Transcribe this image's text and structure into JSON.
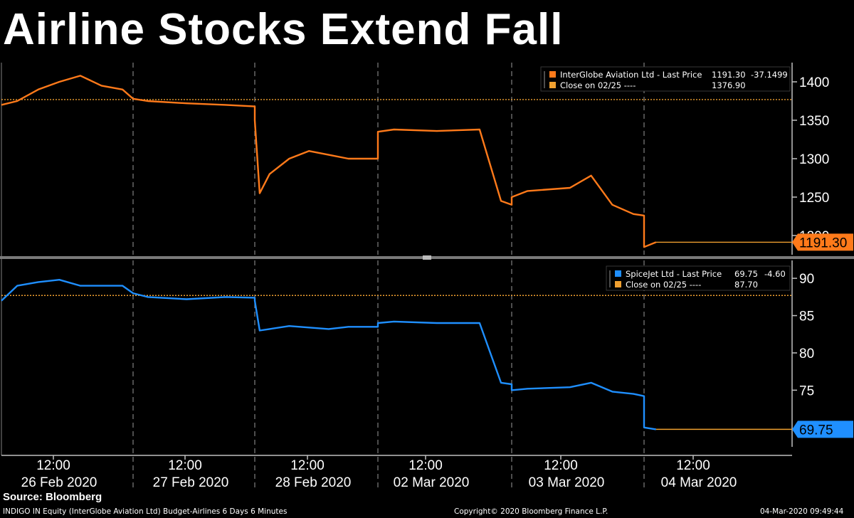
{
  "title": "Airline Stocks Extend Fall",
  "source": "Source: Bloomberg",
  "footer": {
    "left": "INDIGO IN Equity (InterGlobe Aviation Ltd) Budget-Airlines 6 Days 6 Minutes",
    "center": "Copyright© 2020 Bloomberg Finance L.P.",
    "right": "04-Mar-2020 09:49:44"
  },
  "colors": {
    "orange": "#ff7a1a",
    "blue": "#1f8fff",
    "ref": "#f0a030",
    "grid": "#808080",
    "axis": "#c0c0c0"
  },
  "chart_data": [
    {
      "type": "line",
      "series": [
        {
          "name": "InterGlobe Aviation Ltd - Last Price",
          "color": "#ff7a1a",
          "x": [
            "26 Feb 09:15",
            "26 Feb 10:00",
            "26 Feb 11:00",
            "26 Feb 12:00",
            "26 Feb 13:00",
            "26 Feb 14:00",
            "26 Feb 15:00",
            "26 Feb 15:30",
            "27 Feb 10:00",
            "27 Feb 12:00",
            "27 Feb 14:00",
            "27 Feb 15:30",
            "28 Feb 09:15",
            "28 Feb 09:30",
            "28 Feb 10:00",
            "28 Feb 11:00",
            "28 Feb 12:00",
            "28 Feb 13:00",
            "28 Feb 14:00",
            "28 Feb 15:30",
            "02 Mar 09:15",
            "02 Mar 10:00",
            "02 Mar 12:00",
            "02 Mar 14:00",
            "02 Mar 15:00",
            "02 Mar 15:30",
            "03 Mar 09:15",
            "03 Mar 10:00",
            "03 Mar 12:00",
            "03 Mar 13:00",
            "03 Mar 14:00",
            "03 Mar 15:00",
            "03 Mar 15:30",
            "04 Mar 09:15",
            "04 Mar 09:49"
          ],
          "values": [
            1370,
            1375,
            1390,
            1400,
            1408,
            1395,
            1390,
            1378,
            1375,
            1372,
            1370,
            1368,
            1350,
            1255,
            1280,
            1300,
            1310,
            1305,
            1300,
            1300,
            1335,
            1338,
            1336,
            1338,
            1245,
            1240,
            1250,
            1258,
            1262,
            1278,
            1240,
            1228,
            1226,
            1185,
            1191.3
          ]
        },
        {
          "name": "Close on 02/25",
          "color": "#f0a030",
          "reference": 1376.9
        }
      ],
      "legend": [
        {
          "label": "InterGlobe Aviation Ltd - Last Price",
          "value": "1191.30",
          "change": "-37.1499"
        },
        {
          "label": "Close on 02/25 ----",
          "value": "1376.90"
        }
      ],
      "yticks": [
        "1400",
        "1350",
        "1300",
        "1250",
        "1200"
      ],
      "ylim": [
        1175,
        1425
      ],
      "last_label": "1191.30"
    },
    {
      "type": "line",
      "series": [
        {
          "name": "SpiceJet Ltd - Last Price",
          "color": "#1f8fff",
          "x": [
            "26 Feb 09:15",
            "26 Feb 10:00",
            "26 Feb 11:00",
            "26 Feb 12:00",
            "26 Feb 13:00",
            "26 Feb 14:00",
            "26 Feb 15:00",
            "26 Feb 15:30",
            "27 Feb 10:00",
            "27 Feb 12:00",
            "27 Feb 14:00",
            "27 Feb 15:30",
            "28 Feb 09:15",
            "28 Feb 09:30",
            "28 Feb 10:00",
            "28 Feb 11:00",
            "28 Feb 12:00",
            "28 Feb 13:00",
            "28 Feb 14:00",
            "28 Feb 15:30",
            "02 Mar 09:15",
            "02 Mar 10:00",
            "02 Mar 12:00",
            "02 Mar 14:00",
            "02 Mar 15:00",
            "02 Mar 15:30",
            "03 Mar 09:15",
            "03 Mar 10:00",
            "03 Mar 12:00",
            "03 Mar 13:00",
            "03 Mar 14:00",
            "03 Mar 15:00",
            "03 Mar 15:30",
            "04 Mar 09:15",
            "04 Mar 09:49"
          ],
          "values": [
            87,
            89,
            89.5,
            89.8,
            89,
            89,
            89,
            88,
            87.5,
            87.2,
            87.5,
            87.4,
            87,
            83,
            83.2,
            83.6,
            83.4,
            83.2,
            83.5,
            83.5,
            84,
            84.2,
            84,
            84,
            76,
            75.8,
            75,
            75.2,
            75.4,
            76,
            74.8,
            74.5,
            74.2,
            70,
            69.75
          ]
        },
        {
          "name": "Close on 02/25",
          "color": "#f0a030",
          "reference": 87.7
        }
      ],
      "legend": [
        {
          "label": "SpiceJet Ltd - Last Price",
          "value": "69.75",
          "change": "-4.60"
        },
        {
          "label": "Close on 02/25 ----",
          "value": "87.70"
        }
      ],
      "yticks": [
        "90",
        "85",
        "80",
        "75"
      ],
      "ylim": [
        67.4,
        92.4
      ],
      "last_label": "69.75"
    }
  ],
  "x_axis": {
    "time_labels": [
      "12:00",
      "12:00",
      "12:00",
      "12:00",
      "12:00",
      "12:00"
    ],
    "date_labels": [
      "26 Feb 2020",
      "27 Feb 2020",
      "28 Feb 2020",
      "02 Mar 2020",
      "03 Mar 2020",
      "04 Mar 2020"
    ]
  }
}
